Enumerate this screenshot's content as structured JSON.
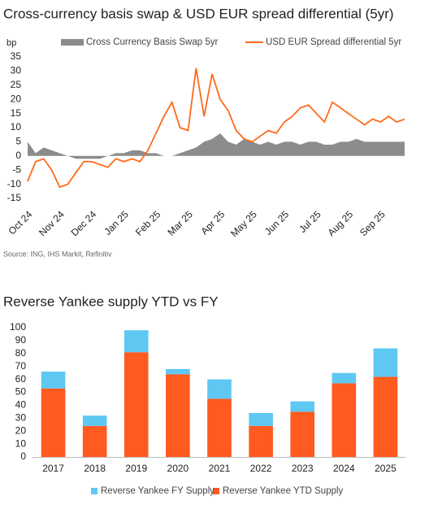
{
  "chart_data": [
    {
      "type": "line",
      "title": "Cross-currency basis swap & USD EUR spread differential (5yr)",
      "y_label": "bp",
      "source": "Source: ING, IHS Markit, Refinitiv",
      "x": [
        "Oct 24",
        "Oct 24",
        "Oct 24",
        "Oct 24",
        "Nov 24",
        "Nov 24",
        "Nov 24",
        "Nov 24",
        "Dec 24",
        "Dec 24",
        "Dec 24",
        "Dec 24",
        "Jan 25",
        "Jan 25",
        "Jan 25",
        "Jan 25",
        "Feb 25",
        "Feb 25",
        "Feb 25",
        "Feb 25",
        "Mar 25",
        "Mar 25",
        "Mar 25",
        "Mar 25",
        "Apr 25",
        "Apr 25",
        "Apr 25",
        "Apr 25",
        "May 25",
        "May 25",
        "May 25",
        "May 25",
        "Jun 25",
        "Jun 25",
        "Jun 25",
        "Jun 25",
        "Jul 25",
        "Jul 25",
        "Jul 25",
        "Jul 25",
        "Aug 25",
        "Aug 25",
        "Aug 25",
        "Aug 25",
        "Sep 25",
        "Sep 25",
        "Sep 25",
        "Sep 25"
      ],
      "xticks": [
        "Oct 24",
        "Nov 24",
        "Dec 24",
        "Jan 25",
        "Feb 25",
        "Mar 25",
        "Apr 25",
        "May 25",
        "Jun 25",
        "Jul 25",
        "Aug 25",
        "Sep 25"
      ],
      "series": [
        {
          "name": "Cross Currency Basis Swap 5yr",
          "kind": "area",
          "color": "#8c8c8c",
          "values": [
            5,
            1,
            3,
            2,
            1,
            0,
            -1,
            -1,
            -1,
            -1,
            0,
            1,
            1,
            2,
            2,
            1,
            1,
            0,
            0,
            1,
            2,
            3,
            5,
            6,
            8,
            5,
            4,
            6,
            5,
            4,
            5,
            4,
            5,
            5,
            4,
            5,
            5,
            4,
            4,
            5,
            5,
            6,
            5,
            5,
            5,
            5,
            5,
            5
          ]
        },
        {
          "name": "USD EUR Spread differential 5yr",
          "kind": "line",
          "color": "#ff6a1a",
          "values": [
            -9,
            -2,
            -1,
            -5,
            -11,
            -10,
            -6,
            -2,
            -2,
            -3,
            -4,
            -1,
            -2,
            -1,
            -2,
            2,
            8,
            14,
            19,
            10,
            9,
            31,
            14,
            29,
            20,
            16,
            9,
            6,
            5,
            7,
            9,
            8,
            12,
            14,
            17,
            18,
            15,
            12,
            19,
            17,
            15,
            13,
            11,
            13,
            12,
            14,
            12,
            13
          ]
        }
      ],
      "ylim": [
        -15,
        35
      ],
      "yticks": [
        -15,
        -10,
        -5,
        0,
        5,
        10,
        15,
        20,
        25,
        30,
        35
      ]
    },
    {
      "type": "bar",
      "stacked": true,
      "title": "Reverse Yankee supply YTD vs FY",
      "categories": [
        "2017",
        "2018",
        "2019",
        "2020",
        "2021",
        "2022",
        "2023",
        "2024",
        "2025"
      ],
      "series": [
        {
          "name": "Reverse Yankee YTD Supply",
          "color": "#ff5a1f",
          "values": [
            53,
            24,
            81,
            64,
            45,
            24,
            35,
            57,
            62
          ]
        },
        {
          "name": "Reverse Yankee FY Supply",
          "color": "#5ec8f2",
          "values": [
            13,
            8,
            17,
            4,
            15,
            10,
            8,
            8,
            22
          ]
        }
      ],
      "ylim": [
        0,
        100
      ],
      "yticks": [
        0,
        10,
        20,
        30,
        40,
        50,
        60,
        70,
        80,
        90,
        100
      ]
    }
  ]
}
